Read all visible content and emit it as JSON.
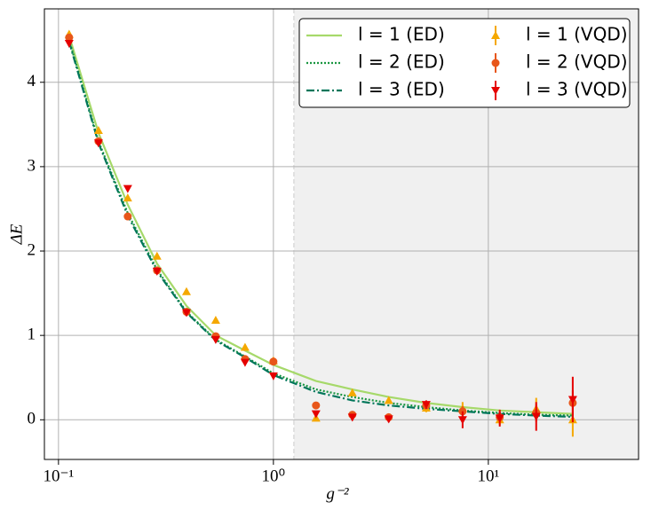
{
  "chart_data": {
    "type": "line-errorbar",
    "xlabel": "g⁻²",
    "ylabel": "ΔE",
    "x": [
      0.1121,
      0.1535,
      0.21,
      0.2874,
      0.394,
      0.539,
      0.738,
      1.0,
      1.578,
      2.33,
      3.44,
      5.14,
      7.59,
      11.3,
      16.7,
      24.7
    ],
    "xlim": [
      0.086,
      50
    ],
    "xscale": "log",
    "xticks": [
      {
        "value": 0.1,
        "label": "10⁻¹"
      },
      {
        "value": 1,
        "label": "10⁰"
      },
      {
        "value": 10,
        "label": "10¹"
      }
    ],
    "ylim": [
      -0.47,
      4.87
    ],
    "yticks": [
      0,
      1,
      2,
      3,
      4
    ],
    "grid": true,
    "legend": "upper right",
    "shaded_region": [
      1.245,
      50
    ],
    "series": [
      {
        "name": "l = 1 (ED)",
        "kind": "solid",
        "color": "#a6d96a",
        "values": [
          4.55,
          3.4,
          2.55,
          1.85,
          1.35,
          1.0,
          0.82,
          0.65,
          0.46,
          0.36,
          0.27,
          0.2,
          0.15,
          0.11,
          0.09,
          0.07
        ]
      },
      {
        "name": "l = 2 (ED)",
        "kind": "dotted",
        "color": "#1a9641",
        "values": [
          4.5,
          3.3,
          2.45,
          1.78,
          1.28,
          0.95,
          0.75,
          0.55,
          0.36,
          0.27,
          0.2,
          0.15,
          0.11,
          0.08,
          0.06,
          0.05
        ]
      },
      {
        "name": "l = 3 (ED)",
        "kind": "dashdot",
        "color": "#00765a",
        "values": [
          4.48,
          3.28,
          2.42,
          1.76,
          1.27,
          0.94,
          0.74,
          0.53,
          0.33,
          0.23,
          0.17,
          0.13,
          0.1,
          0.07,
          0.05,
          0.035
        ]
      },
      {
        "name": "l = 1 (VQD)",
        "kind": "triangle-up",
        "color": "#f5a800",
        "values": [
          4.57,
          3.43,
          2.63,
          1.94,
          1.52,
          1.18,
          0.86,
          0.7,
          0.02,
          0.32,
          0.23,
          0.14,
          0.13,
          0.0,
          0.13,
          0.0
        ],
        "errors": [
          0.03,
          0.03,
          0.03,
          0.02,
          0.02,
          0.02,
          0.02,
          0.02,
          0.02,
          0.03,
          0.03,
          0.05,
          0.08,
          0.06,
          0.13,
          0.2
        ]
      },
      {
        "name": "l = 2 (VQD)",
        "kind": "circle",
        "color": "#e8561a",
        "values": [
          4.53,
          3.3,
          2.41,
          1.77,
          1.28,
          0.99,
          0.72,
          0.69,
          0.17,
          0.06,
          0.03,
          0.17,
          0.1,
          0.03,
          0.08,
          0.2
        ],
        "errors": [
          0.03,
          0.03,
          0.02,
          0.02,
          0.02,
          0.02,
          0.02,
          0.02,
          0.02,
          0.03,
          0.03,
          0.04,
          0.06,
          0.06,
          0.1,
          0.15
        ]
      },
      {
        "name": "l = 3 (VQD)",
        "kind": "triangle-down",
        "color": "#e50000",
        "values": [
          4.46,
          3.28,
          2.74,
          1.76,
          1.27,
          0.95,
          0.68,
          0.52,
          0.07,
          0.03,
          0.01,
          0.18,
          0.0,
          0.02,
          0.04,
          0.24
        ],
        "errors": [
          0.03,
          0.03,
          0.02,
          0.02,
          0.02,
          0.02,
          0.02,
          0.02,
          0.03,
          0.04,
          0.04,
          0.05,
          0.1,
          0.1,
          0.17,
          0.27
        ]
      }
    ]
  }
}
